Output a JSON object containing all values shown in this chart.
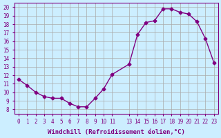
{
  "x": [
    0,
    1,
    2,
    3,
    4,
    5,
    6,
    7,
    8,
    9,
    10,
    11,
    13,
    14,
    15,
    16,
    17,
    18,
    19,
    20,
    21,
    22,
    23
  ],
  "y": [
    11.5,
    10.8,
    10.0,
    9.5,
    9.3,
    9.3,
    8.7,
    8.3,
    8.3,
    9.3,
    10.4,
    12.1,
    13.3,
    16.8,
    18.2,
    18.4,
    19.8,
    19.8,
    19.4,
    19.2,
    18.3,
    16.3,
    13.5
  ],
  "ylim": [
    7.5,
    20.5
  ],
  "xlim": [
    -0.5,
    23.5
  ],
  "yticks": [
    8,
    9,
    10,
    11,
    12,
    13,
    14,
    15,
    16,
    17,
    18,
    19,
    20
  ],
  "xticks": [
    0,
    1,
    2,
    3,
    4,
    5,
    6,
    7,
    8,
    9,
    10,
    11,
    13,
    14,
    15,
    16,
    17,
    18,
    19,
    20,
    21,
    22,
    23
  ],
  "xlabel": "Windchill (Refroidissement éolien,°C)",
  "line_color": "#800080",
  "marker_color": "#800080",
  "bg_color": "#cceeff",
  "grid_color": "#aaaaaa",
  "font_color": "#800080"
}
